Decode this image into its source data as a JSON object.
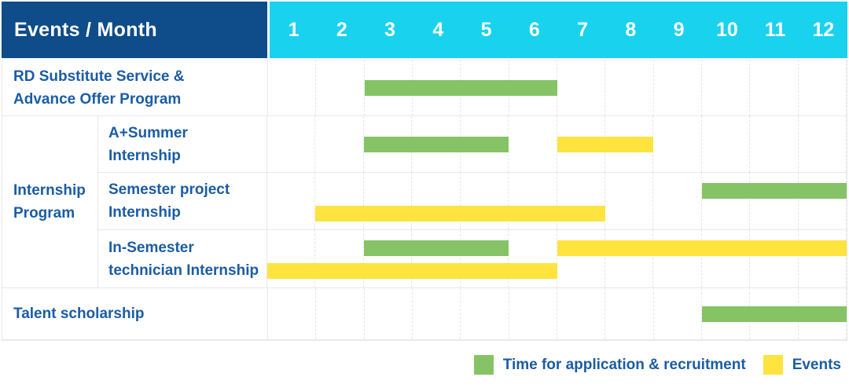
{
  "colors": {
    "header_bg": "#0e4c8a",
    "months_bg": "#19d2ee",
    "text_blue": "#1b5ca4",
    "grid": "#e9e9e9",
    "green": "#86c366",
    "yellow": "#ffe33f"
  },
  "header": {
    "title": "Events / Month",
    "months": [
      "1",
      "2",
      "3",
      "4",
      "5",
      "6",
      "7",
      "8",
      "9",
      "10",
      "11",
      "12"
    ]
  },
  "group": {
    "line1": "Internship",
    "line2": "Program"
  },
  "rows": [
    {
      "line1": "RD Substitute Service &",
      "line2": "Advance Offer Program",
      "group": false,
      "bars": [
        {
          "color": "green",
          "start": 3,
          "end": 6,
          "lane": "single"
        }
      ]
    },
    {
      "line1": "A+Summer",
      "line2": "Internship",
      "group": true,
      "bars": [
        {
          "color": "green",
          "start": 3,
          "end": 5,
          "lane": "single"
        },
        {
          "color": "yellow",
          "start": 7,
          "end": 8,
          "lane": "single"
        }
      ]
    },
    {
      "line1": "Semester project",
      "line2": "Internship",
      "group": true,
      "bars": [
        {
          "color": "green",
          "start": 10,
          "end": 12,
          "lane": "top"
        },
        {
          "color": "yellow",
          "start": 2,
          "end": 7,
          "lane": "bottom"
        }
      ]
    },
    {
      "line1": "In-Semester",
      "line2": "technician Internship",
      "group": true,
      "bars": [
        {
          "color": "green",
          "start": 3,
          "end": 5,
          "lane": "top"
        },
        {
          "color": "yellow",
          "start": 7,
          "end": 12,
          "lane": "top"
        },
        {
          "color": "yellow",
          "start": 1,
          "end": 6,
          "lane": "bottom"
        }
      ]
    },
    {
      "line1": "Talent scholarship",
      "line2": "",
      "group": false,
      "bars": [
        {
          "color": "green",
          "start": 10,
          "end": 12,
          "lane": "single"
        }
      ]
    }
  ],
  "legend": [
    {
      "color": "green",
      "label": "Time for application & recruitment"
    },
    {
      "color": "yellow",
      "label": "Events"
    }
  ],
  "chart_data": {
    "type": "gantt",
    "title": "Events / Month",
    "x_unit": "month",
    "x_range": [
      1,
      12
    ],
    "grid": true,
    "legend_position": "bottom-right",
    "series": [
      {
        "row": "RD Substitute Service & Advance Offer Program",
        "bars": [
          {
            "kind": "Time for application & recruitment",
            "months": [
              3,
              6
            ]
          }
        ]
      },
      {
        "row": "Internship Program / A+Summer Internship",
        "bars": [
          {
            "kind": "Time for application & recruitment",
            "months": [
              3,
              5
            ]
          },
          {
            "kind": "Events",
            "months": [
              7,
              8
            ]
          }
        ]
      },
      {
        "row": "Internship Program / Semester project Internship",
        "bars": [
          {
            "kind": "Time for application & recruitment",
            "months": [
              10,
              12
            ]
          },
          {
            "kind": "Events",
            "months": [
              2,
              7
            ]
          }
        ]
      },
      {
        "row": "Internship Program / In-Semester technician Internship",
        "bars": [
          {
            "kind": "Time for application & recruitment",
            "months": [
              3,
              5
            ]
          },
          {
            "kind": "Events",
            "months": [
              7,
              12
            ]
          },
          {
            "kind": "Events",
            "months": [
              1,
              6
            ]
          }
        ]
      },
      {
        "row": "Talent scholarship",
        "bars": [
          {
            "kind": "Time for application & recruitment",
            "months": [
              10,
              12
            ]
          }
        ]
      }
    ]
  }
}
